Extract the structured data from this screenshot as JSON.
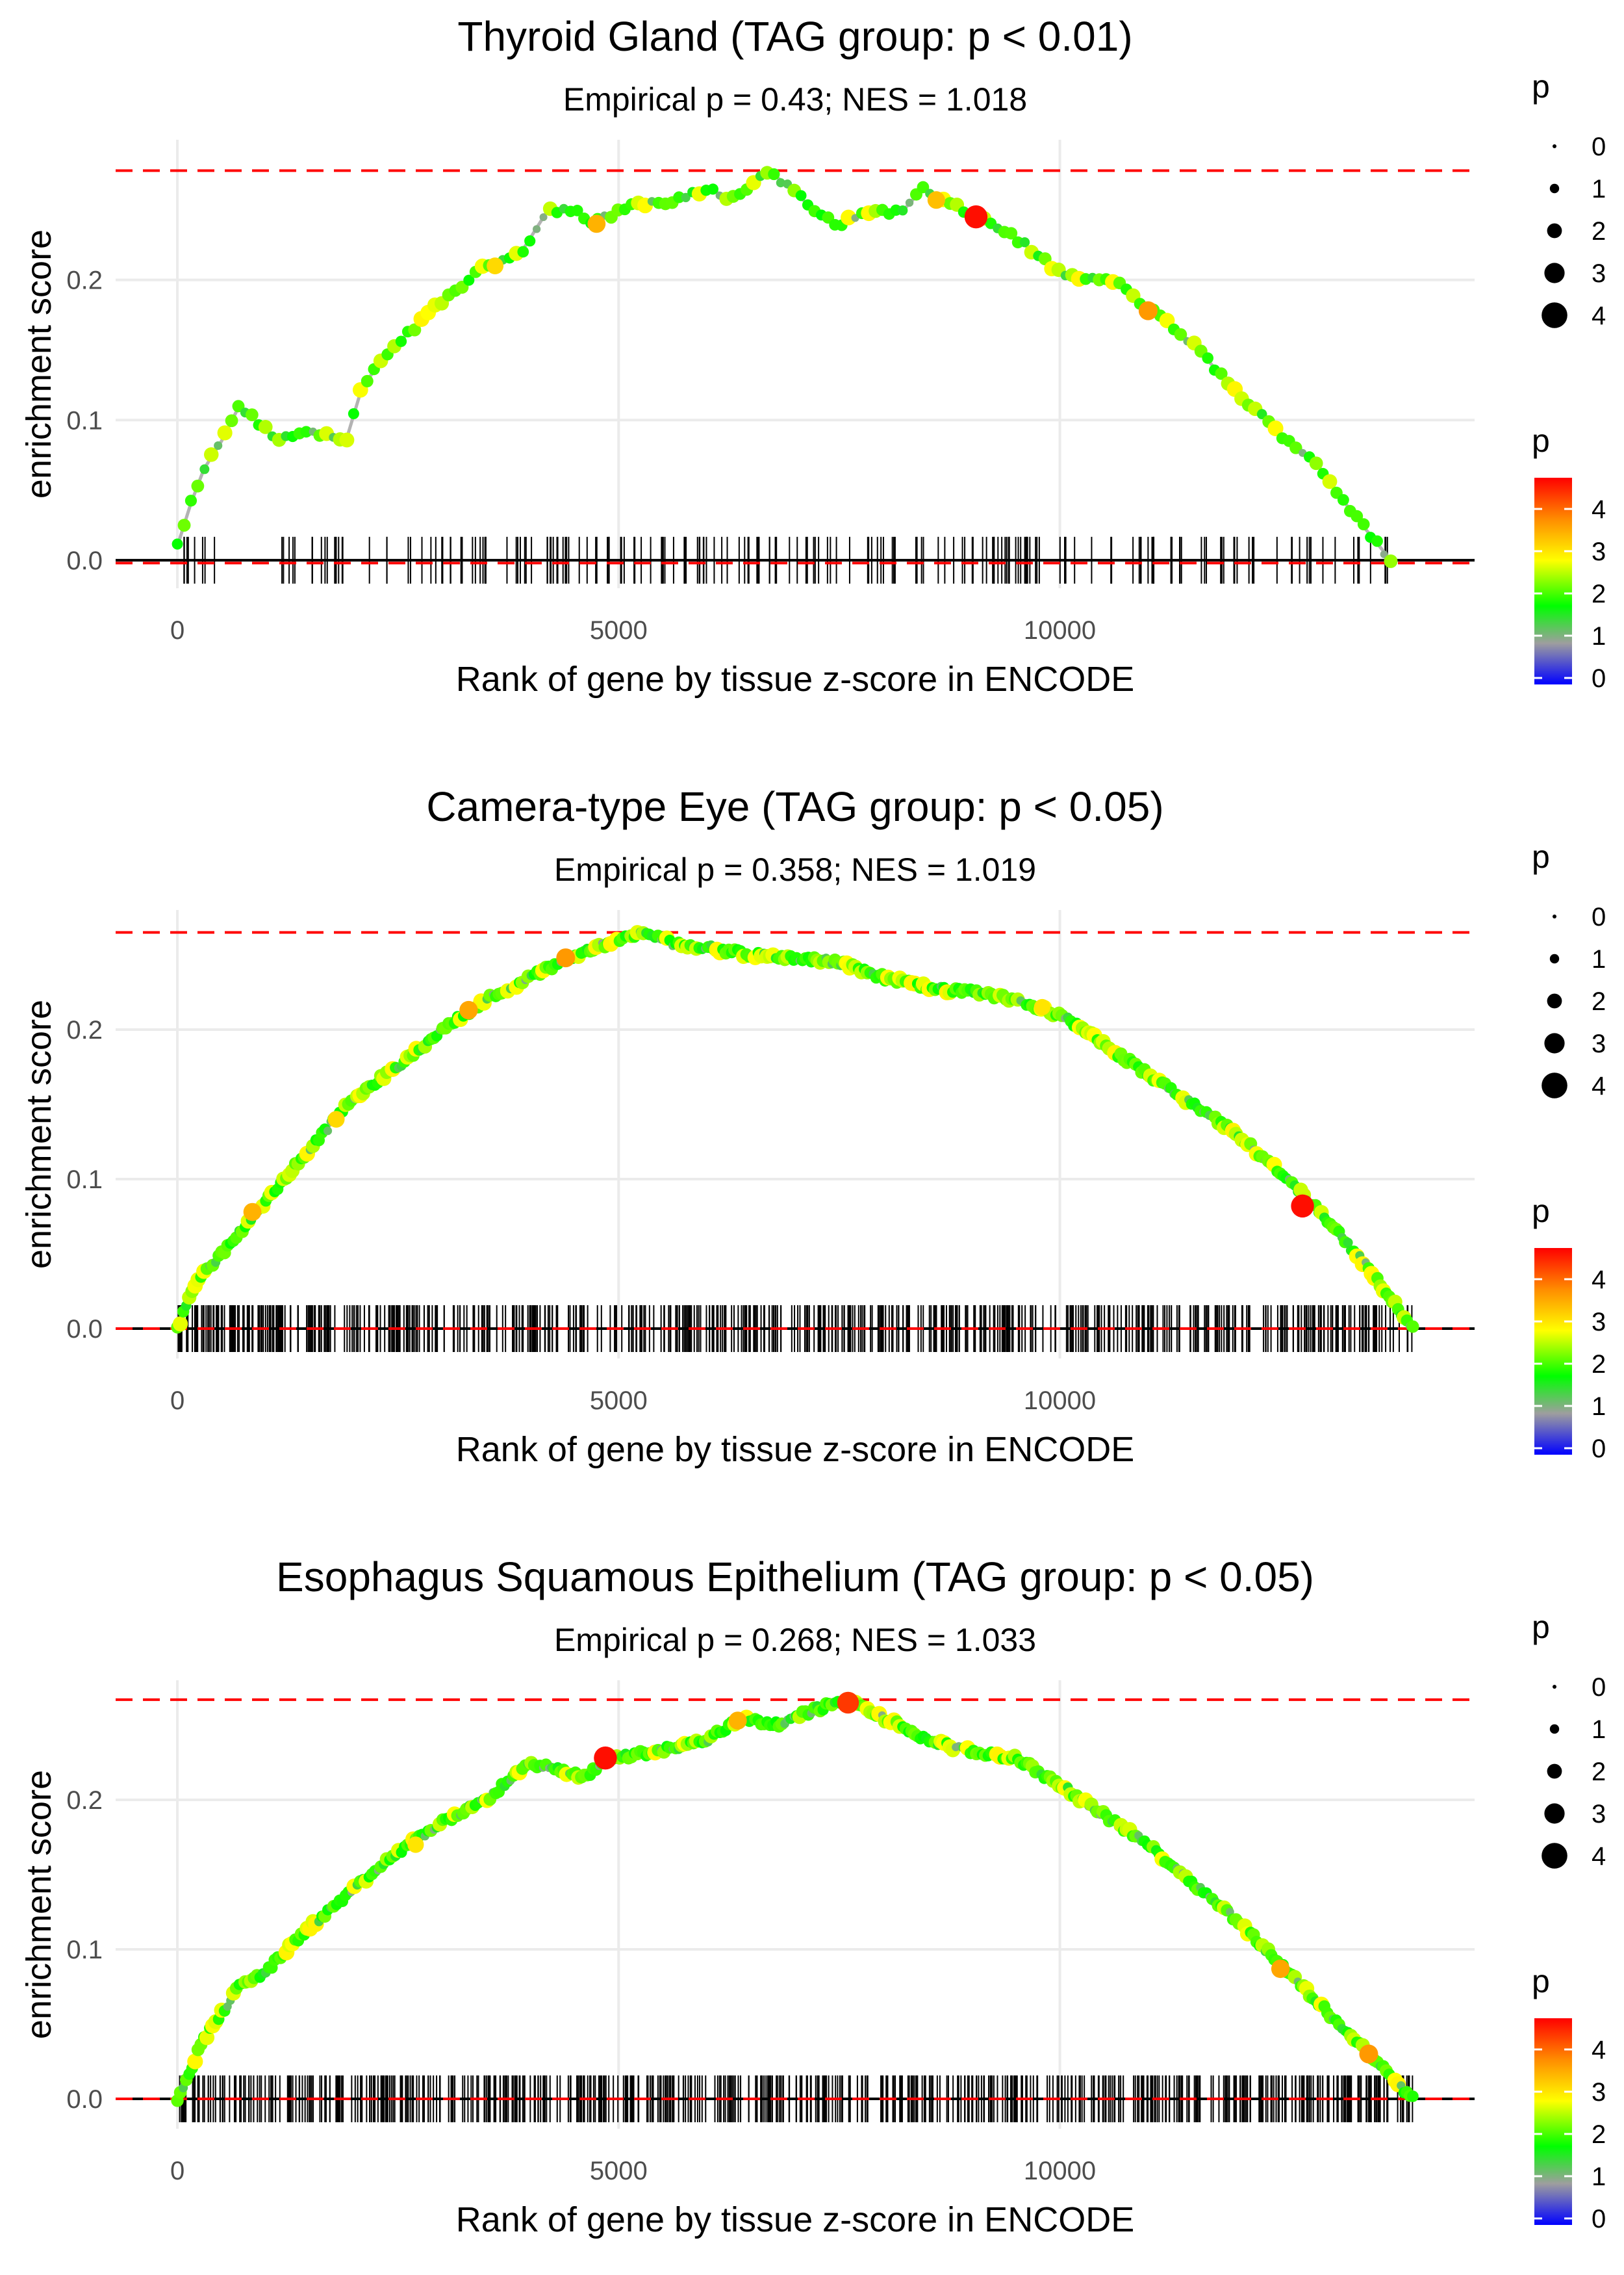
{
  "figure": {
    "x_label_text": "Rank of gene by tissue z-score in ENCODE",
    "y_label_text": "enrichment score"
  },
  "legend": {
    "size_title": "p",
    "size_labels": [
      "0",
      "1",
      "2",
      "3",
      "4"
    ],
    "color_title": "p",
    "color_labels": [
      "4",
      "3",
      "2",
      "1",
      "0"
    ],
    "colors": [
      "#ff0000",
      "#ff8c00",
      "#ffff00",
      "#00ff00",
      "#9e9e9e",
      "#0000ff"
    ]
  },
  "chart_data": [
    {
      "type": "line",
      "title": "Thyroid Gland (TAG group: p < 0.01)",
      "subtitle": "Empirical p = 0.43; NES = 1.018",
      "xlabel": "Rank of gene by tissue z-score in ENCODE",
      "ylabel": "enrichment score",
      "xlim": [
        -700,
        14700
      ],
      "ylim": [
        -0.02,
        0.3
      ],
      "x_ticks": [
        0,
        5000,
        10000
      ],
      "y_ticks": [
        0.0,
        0.1,
        0.2
      ],
      "x_tick_labels": [
        "0",
        "5000",
        "10000"
      ],
      "y_tick_labels": [
        "0.0",
        "0.1",
        "0.2"
      ],
      "max_line": 0.278,
      "min_line": -0.002,
      "n_genes": 13750,
      "n_hits": 210,
      "series": [
        {
          "name": "running enrichment score",
          "x": [
            0,
            150,
            300,
            500,
            700,
            1150,
            1400,
            1750,
            1900,
            2100,
            2500,
            3000,
            3500,
            3900,
            4200,
            4500,
            4700,
            5200,
            5600,
            6000,
            6300,
            6700,
            6900,
            7300,
            7500,
            7900,
            8200,
            8450,
            8700,
            9100,
            9500,
            10000,
            10300,
            10600,
            11000,
            11500,
            12000,
            12500,
            12900,
            13300,
            13750
          ],
          "y": [
            0.01,
            0.04,
            0.065,
            0.085,
            0.11,
            0.085,
            0.092,
            0.09,
            0.083,
            0.125,
            0.155,
            0.185,
            0.21,
            0.22,
            0.25,
            0.25,
            0.24,
            0.255,
            0.255,
            0.265,
            0.258,
            0.278,
            0.268,
            0.245,
            0.24,
            0.25,
            0.248,
            0.265,
            0.255,
            0.245,
            0.23,
            0.205,
            0.2,
            0.2,
            0.18,
            0.155,
            0.12,
            0.09,
            0.07,
            0.035,
            0.0
          ]
        }
      ],
      "highlight_points": [
        {
          "x": 4750,
          "y": 0.24,
          "p": 3.4
        },
        {
          "x": 8600,
          "y": 0.257,
          "p": 3.3
        },
        {
          "x": 9050,
          "y": 0.245,
          "p": 4.6
        },
        {
          "x": 11000,
          "y": 0.178,
          "p": 3.6
        },
        {
          "x": 3600,
          "y": 0.21,
          "p": 3.1
        }
      ]
    },
    {
      "type": "line",
      "title": "Camera-type Eye (TAG group: p < 0.05)",
      "subtitle": "Empirical p = 0.358; NES = 1.019",
      "xlabel": "Rank of gene by tissue z-score in ENCODE",
      "ylabel": "enrichment score",
      "xlim": [
        -700,
        14700
      ],
      "ylim": [
        -0.02,
        0.28
      ],
      "x_ticks": [
        0,
        5000,
        10000
      ],
      "y_ticks": [
        0.0,
        0.1,
        0.2
      ],
      "x_tick_labels": [
        "0",
        "5000",
        "10000"
      ],
      "y_tick_labels": [
        "0.0",
        "0.1",
        "0.2"
      ],
      "max_line": 0.265,
      "min_line": 0.0,
      "n_genes": 14000,
      "n_hits": 620,
      "series": [
        {
          "name": "running enrichment score",
          "x": [
            0,
            200,
            500,
            1000,
            1500,
            2000,
            2500,
            3000,
            3500,
            4000,
            4500,
            5000,
            5300,
            5600,
            6000,
            6500,
            7000,
            7500,
            8000,
            8500,
            9000,
            9500,
            10000,
            10500,
            11000,
            11500,
            12000,
            12500,
            13000,
            13500,
            14000
          ],
          "y": [
            0.0,
            0.03,
            0.05,
            0.085,
            0.12,
            0.155,
            0.175,
            0.2,
            0.22,
            0.235,
            0.25,
            0.26,
            0.265,
            0.258,
            0.255,
            0.25,
            0.248,
            0.245,
            0.235,
            0.228,
            0.225,
            0.22,
            0.21,
            0.19,
            0.17,
            0.15,
            0.13,
            0.105,
            0.075,
            0.04,
            0.0
          ]
        }
      ],
      "highlight_points": [
        {
          "x": 850,
          "y": 0.078,
          "p": 3.4
        },
        {
          "x": 1800,
          "y": 0.14,
          "p": 3.1
        },
        {
          "x": 3300,
          "y": 0.213,
          "p": 3.5
        },
        {
          "x": 4400,
          "y": 0.248,
          "p": 3.6
        },
        {
          "x": 9800,
          "y": 0.215,
          "p": 3.0
        },
        {
          "x": 12750,
          "y": 0.082,
          "p": 4.6
        }
      ]
    },
    {
      "type": "line",
      "title": "Esophagus Squamous Epithelium (TAG group: p < 0.05)",
      "subtitle": "Empirical p = 0.268; NES = 1.033",
      "xlabel": "Rank of gene by tissue z-score in ENCODE",
      "ylabel": "enrichment score",
      "xlim": [
        -700,
        14700
      ],
      "ylim": [
        -0.02,
        0.28
      ],
      "x_ticks": [
        0,
        5000,
        10000
      ],
      "y_ticks": [
        0.0,
        0.1,
        0.2
      ],
      "x_tick_labels": [
        "0",
        "5000",
        "10000"
      ],
      "y_tick_labels": [
        "0.0",
        "0.1",
        "0.2"
      ],
      "max_line": 0.267,
      "min_line": 0.0,
      "n_genes": 14000,
      "n_hits": 640,
      "series": [
        {
          "name": "running enrichment score",
          "x": [
            0,
            300,
            700,
            1000,
            1500,
            2000,
            2500,
            3000,
            3500,
            4000,
            4300,
            4600,
            4900,
            5400,
            6000,
            6400,
            6800,
            7200,
            7600,
            8000,
            8500,
            9000,
            9500,
            10000,
            10500,
            11000,
            11500,
            12000,
            12500,
            13000,
            13500,
            14000
          ],
          "y": [
            0.0,
            0.04,
            0.075,
            0.085,
            0.115,
            0.14,
            0.165,
            0.185,
            0.2,
            0.225,
            0.22,
            0.215,
            0.228,
            0.232,
            0.24,
            0.255,
            0.25,
            0.26,
            0.267,
            0.255,
            0.24,
            0.232,
            0.228,
            0.21,
            0.19,
            0.17,
            0.145,
            0.12,
            0.09,
            0.06,
            0.03,
            0.0
          ]
        }
      ],
      "highlight_points": [
        {
          "x": 4850,
          "y": 0.228,
          "p": 4.6
        },
        {
          "x": 6350,
          "y": 0.253,
          "p": 3.4
        },
        {
          "x": 7600,
          "y": 0.265,
          "p": 4.3
        },
        {
          "x": 12500,
          "y": 0.087,
          "p": 3.5
        },
        {
          "x": 13500,
          "y": 0.03,
          "p": 3.6
        },
        {
          "x": 2700,
          "y": 0.17,
          "p": 3.0
        }
      ]
    }
  ]
}
